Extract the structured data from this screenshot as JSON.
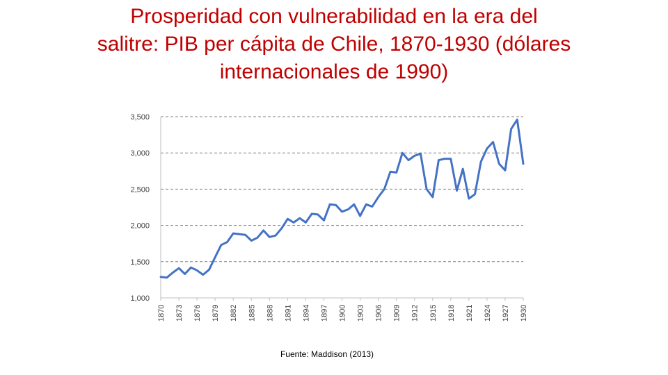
{
  "slide": {
    "title_lines": [
      "Prosperidad con vulnerabilidad en la era del",
      "salitre: PIB per cápita de Chile, 1870-1930 (dólares",
      "internacionales de 1990)"
    ],
    "source": "Fuente: Maddison (2013)"
  },
  "colors": {
    "title": "#c00000",
    "line": "#4472c4",
    "grid": "#808080"
  },
  "chart_data": {
    "type": "line",
    "title": "",
    "xlabel": "",
    "ylabel": "",
    "ylim": [
      1000,
      3500
    ],
    "xlim": [
      1870,
      1930
    ],
    "grid": true,
    "yticks": [
      "1,000",
      "1,500",
      "2,000",
      "2,500",
      "3,000",
      "3,500"
    ],
    "xticks": [
      "1870",
      "1873",
      "1876",
      "1879",
      "1882",
      "1885",
      "1888",
      "1891",
      "1894",
      "1897",
      "1900",
      "1903",
      "1906",
      "1909",
      "1912",
      "1915",
      "1918",
      "1921",
      "1924",
      "1927",
      "1930"
    ],
    "x": [
      1870,
      1871,
      1872,
      1873,
      1874,
      1875,
      1876,
      1877,
      1878,
      1879,
      1880,
      1881,
      1882,
      1883,
      1884,
      1885,
      1886,
      1887,
      1888,
      1889,
      1890,
      1891,
      1892,
      1893,
      1894,
      1895,
      1896,
      1897,
      1898,
      1899,
      1900,
      1901,
      1902,
      1903,
      1904,
      1905,
      1906,
      1907,
      1908,
      1909,
      1910,
      1911,
      1912,
      1913,
      1914,
      1915,
      1916,
      1917,
      1918,
      1919,
      1920,
      1921,
      1922,
      1923,
      1924,
      1925,
      1926,
      1927,
      1928,
      1929,
      1930
    ],
    "series": [
      {
        "values": [
          1290,
          1280,
          1350,
          1410,
          1330,
          1420,
          1380,
          1320,
          1390,
          1560,
          1730,
          1770,
          1890,
          1880,
          1870,
          1790,
          1830,
          1930,
          1840,
          1860,
          1960,
          2090,
          2040,
          2100,
          2040,
          2160,
          2150,
          2070,
          2290,
          2280,
          2190,
          2220,
          2290,
          2130,
          2290,
          2260,
          2390,
          2500,
          2740,
          2730,
          3000,
          2900,
          2960,
          2990,
          2500,
          2390,
          2900,
          2920,
          2920,
          2480,
          2780,
          2370,
          2430,
          2880,
          3060,
          3150,
          2850,
          2760,
          3330,
          3460,
          2850
        ]
      }
    ]
  }
}
